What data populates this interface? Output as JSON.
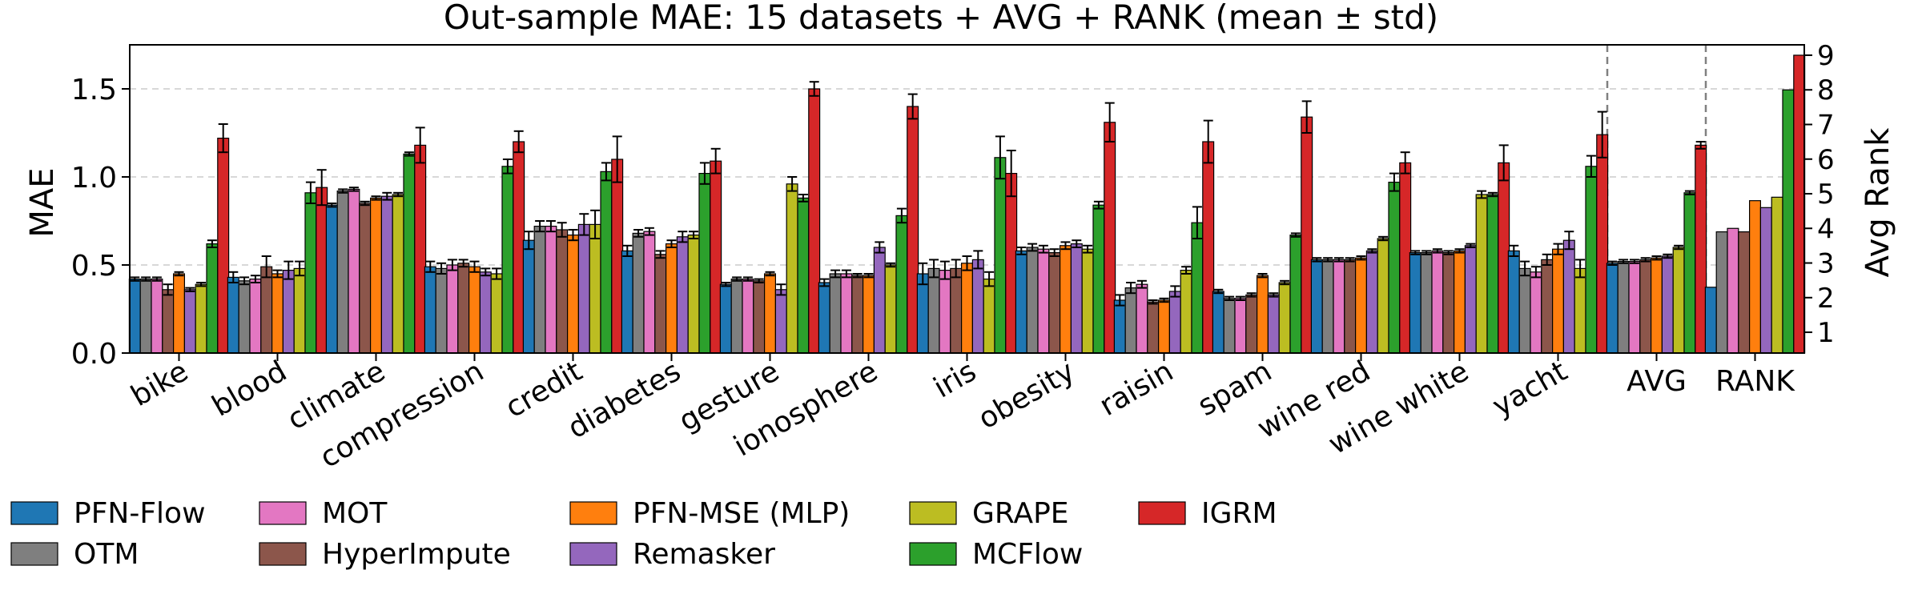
{
  "chart_data": {
    "type": "bar",
    "title": "Out-sample MAE: 15 datasets + AVG + RANK (mean ± std)",
    "ylabel": "MAE",
    "y2label": "Avg Rank",
    "ylim": [
      0,
      1.75
    ],
    "y2lim": [
      0.4,
      9.3
    ],
    "yticks": [
      "0.0",
      "0.5",
      "1.0",
      "1.5"
    ],
    "y2ticks": [
      "1",
      "2",
      "3",
      "4",
      "5",
      "6",
      "7",
      "8",
      "9"
    ],
    "grid": "horizontal dashed",
    "categories": [
      "bike",
      "blood",
      "climate",
      "compression",
      "credit",
      "diabetes",
      "gesture",
      "ionosphere",
      "iris",
      "obesity",
      "raisin",
      "spam",
      "wine red",
      "wine white",
      "yacht",
      "AVG",
      "RANK"
    ],
    "series": [
      {
        "name": "PFN-Flow",
        "color": "#1f77b4",
        "values": [
          0.42,
          0.43,
          0.84,
          0.49,
          0.64,
          0.58,
          0.39,
          0.4,
          0.45,
          0.58,
          0.3,
          0.35,
          0.53,
          0.57,
          0.58,
          0.51,
          2.3
        ],
        "err": [
          0.01,
          0.03,
          0.01,
          0.03,
          0.05,
          0.03,
          0.01,
          0.02,
          0.06,
          0.02,
          0.03,
          0.01,
          0.01,
          0.01,
          0.03,
          0.01,
          0
        ]
      },
      {
        "name": "OTM",
        "color": "#7f7f7f",
        "values": [
          0.42,
          0.41,
          0.92,
          0.48,
          0.72,
          0.68,
          0.42,
          0.45,
          0.48,
          0.6,
          0.37,
          0.31,
          0.53,
          0.57,
          0.48,
          0.52,
          3.9
        ],
        "err": [
          0.01,
          0.02,
          0.01,
          0.03,
          0.03,
          0.02,
          0.01,
          0.02,
          0.05,
          0.02,
          0.03,
          0.01,
          0.01,
          0.01,
          0.04,
          0.01,
          0
        ]
      },
      {
        "name": "MOT",
        "color": "#e377c2",
        "values": [
          0.42,
          0.42,
          0.93,
          0.5,
          0.72,
          0.69,
          0.42,
          0.45,
          0.47,
          0.59,
          0.39,
          0.31,
          0.53,
          0.58,
          0.46,
          0.52,
          4.0
        ],
        "err": [
          0.01,
          0.02,
          0.01,
          0.03,
          0.03,
          0.02,
          0.01,
          0.02,
          0.05,
          0.02,
          0.02,
          0.01,
          0.01,
          0.01,
          0.03,
          0.01,
          0
        ]
      },
      {
        "name": "HyperImpute",
        "color": "#8c564b",
        "values": [
          0.36,
          0.49,
          0.85,
          0.51,
          0.7,
          0.56,
          0.41,
          0.44,
          0.48,
          0.57,
          0.29,
          0.33,
          0.53,
          0.57,
          0.53,
          0.53,
          3.9
        ],
        "err": [
          0.03,
          0.06,
          0.01,
          0.02,
          0.04,
          0.02,
          0.01,
          0.01,
          0.05,
          0.02,
          0.01,
          0.01,
          0.01,
          0.01,
          0.03,
          0.01,
          0
        ]
      },
      {
        "name": "PFN-MSE (MLP)",
        "color": "#ff7f0e",
        "values": [
          0.45,
          0.45,
          0.88,
          0.49,
          0.67,
          0.62,
          0.45,
          0.44,
          0.51,
          0.61,
          0.3,
          0.44,
          0.54,
          0.58,
          0.59,
          0.54,
          4.8
        ],
        "err": [
          0.01,
          0.02,
          0.01,
          0.03,
          0.03,
          0.02,
          0.01,
          0.01,
          0.04,
          0.02,
          0.01,
          0.01,
          0.01,
          0.01,
          0.03,
          0.01,
          0
        ]
      },
      {
        "name": "Remasker",
        "color": "#9467bd",
        "values": [
          0.36,
          0.47,
          0.89,
          0.46,
          0.73,
          0.66,
          0.36,
          0.6,
          0.53,
          0.62,
          0.35,
          0.33,
          0.58,
          0.61,
          0.64,
          0.55,
          4.6
        ],
        "err": [
          0.01,
          0.05,
          0.02,
          0.02,
          0.06,
          0.03,
          0.03,
          0.03,
          0.05,
          0.02,
          0.03,
          0.01,
          0.01,
          0.01,
          0.05,
          0.01,
          0
        ]
      },
      {
        "name": "GRAPE",
        "color": "#bcbd22",
        "values": [
          0.39,
          0.48,
          0.9,
          0.45,
          0.73,
          0.67,
          0.96,
          0.5,
          0.42,
          0.59,
          0.47,
          0.4,
          0.65,
          0.9,
          0.48,
          0.6,
          4.9
        ],
        "err": [
          0.01,
          0.04,
          0.01,
          0.03,
          0.08,
          0.02,
          0.04,
          0.01,
          0.04,
          0.02,
          0.02,
          0.01,
          0.01,
          0.02,
          0.05,
          0.01,
          0
        ]
      },
      {
        "name": "MCFlow",
        "color": "#2ca02c",
        "values": [
          0.62,
          0.91,
          1.13,
          1.06,
          1.03,
          1.02,
          0.88,
          0.78,
          1.11,
          0.84,
          0.74,
          0.67,
          0.97,
          0.9,
          1.06,
          0.91,
          8.0
        ],
        "err": [
          0.02,
          0.06,
          0.01,
          0.04,
          0.05,
          0.06,
          0.02,
          0.04,
          0.12,
          0.02,
          0.09,
          0.01,
          0.05,
          0.01,
          0.06,
          0.01,
          0
        ]
      },
      {
        "name": "IGRM",
        "color": "#d62728",
        "values": [
          1.22,
          0.94,
          1.18,
          1.2,
          1.1,
          1.09,
          1.5,
          1.4,
          1.02,
          1.31,
          1.2,
          1.34,
          1.08,
          1.08,
          1.24,
          1.18,
          9.0
        ],
        "err": [
          0.08,
          0.1,
          0.1,
          0.06,
          0.13,
          0.07,
          0.04,
          0.07,
          0.13,
          0.11,
          0.12,
          0.09,
          0.06,
          0.1,
          0.13,
          0.02,
          0
        ]
      }
    ],
    "legend_placement": "bottom, 5 columns"
  }
}
